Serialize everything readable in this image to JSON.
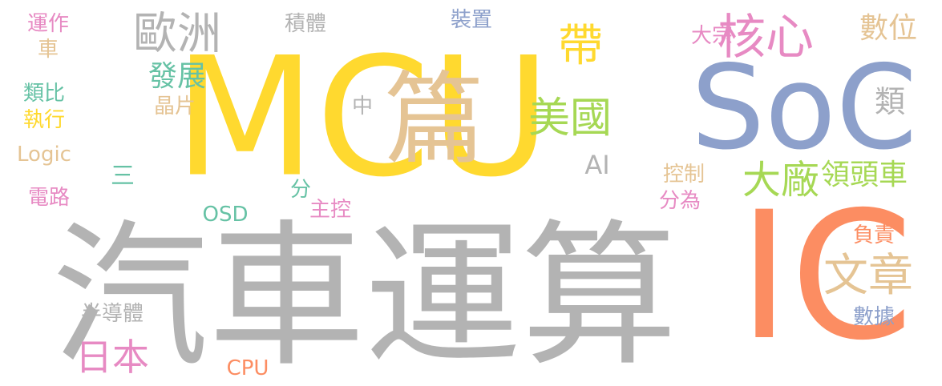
{
  "words": [
    {
      "text": "MCU",
      "color": "#ffd92f"
    },
    {
      "text": "汽車運算",
      "color": "#b3b3b3"
    },
    {
      "text": "IC",
      "color": "#fc8d62"
    },
    {
      "text": "SoC",
      "color": "#8da0cb"
    },
    {
      "text": "篇",
      "color": "#e5c494"
    },
    {
      "text": "歐洲",
      "color": "#b3b3b3"
    },
    {
      "text": "核心",
      "color": "#e78ac3"
    },
    {
      "text": "帶",
      "color": "#ffd92f"
    },
    {
      "text": "美國",
      "color": "#a6d854"
    },
    {
      "text": "大廠",
      "color": "#a6d854"
    },
    {
      "text": "領頭車",
      "color": "#a6d854"
    },
    {
      "text": "文章",
      "color": "#e5c494"
    },
    {
      "text": "數位",
      "color": "#e5c494"
    },
    {
      "text": "發展",
      "color": "#66c2a5"
    },
    {
      "text": "日本",
      "color": "#e78ac3"
    },
    {
      "text": "類",
      "color": "#b3b3b3"
    },
    {
      "text": "AI",
      "color": "#b3b3b3"
    },
    {
      "text": "大宗",
      "color": "#e78ac3"
    },
    {
      "text": "運作",
      "color": "#e78ac3"
    },
    {
      "text": "車",
      "color": "#e5c494"
    },
    {
      "text": "積體",
      "color": "#b3b3b3"
    },
    {
      "text": "裝置",
      "color": "#8da0cb"
    },
    {
      "text": "晶片",
      "color": "#e5c494"
    },
    {
      "text": "類比",
      "color": "#66c2a5"
    },
    {
      "text": "執行",
      "color": "#ffd92f"
    },
    {
      "text": "Logic",
      "color": "#e5c494"
    },
    {
      "text": "中",
      "color": "#b3b3b3"
    },
    {
      "text": "三",
      "color": "#66c2a5"
    },
    {
      "text": "電路",
      "color": "#e78ac3"
    },
    {
      "text": "分",
      "color": "#66c2a5"
    },
    {
      "text": "OSD",
      "color": "#66c2a5"
    },
    {
      "text": "主控",
      "color": "#e78ac3"
    },
    {
      "text": "控制",
      "color": "#e5c494"
    },
    {
      "text": "分為",
      "color": "#e78ac3"
    },
    {
      "text": "負責",
      "color": "#fc8d62"
    },
    {
      "text": "數據",
      "color": "#8da0cb"
    },
    {
      "text": "半導體",
      "color": "#b3b3b3"
    },
    {
      "text": "CPU",
      "color": "#fc8d62"
    }
  ]
}
